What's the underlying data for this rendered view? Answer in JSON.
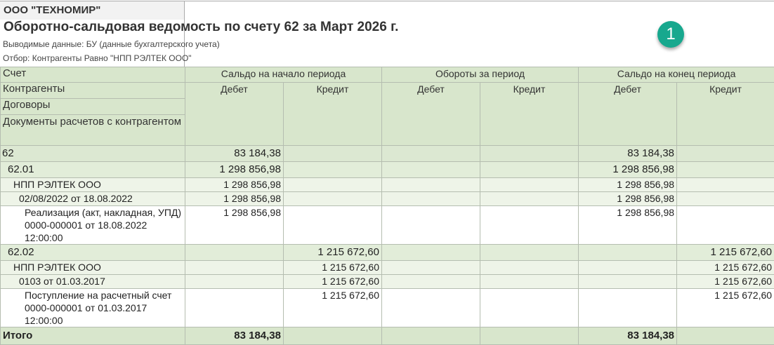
{
  "report": {
    "organization": "ООО \"ТЕХНОМИР\"",
    "title": "Оборотно-сальдовая ведомость по счету 62 за Март 2026 г.",
    "output_data": "Выводимые данные: БУ (данные бухгалтерского учета)",
    "filter": "Отбор: Контрагенты Равно \"НПП РЭЛТЕК ООО\""
  },
  "badge": "1",
  "header": {
    "row_labels": [
      "Счет",
      "Контрагенты",
      "Договоры",
      "Документы расчетов с контрагентом"
    ],
    "groups": [
      "Сальдо на начало периода",
      "Обороты за период",
      "Сальдо на конец периода"
    ],
    "debit": "Дебет",
    "credit": "Кредит"
  },
  "rows": [
    {
      "label": "62",
      "values": [
        "83 184,38",
        "",
        "",
        "",
        "83 184,38",
        ""
      ]
    },
    {
      "label": "62.01",
      "values": [
        "1 298 856,98",
        "",
        "",
        "",
        "1 298 856,98",
        ""
      ]
    },
    {
      "label": "НПП РЭЛТЕК ООО",
      "values": [
        "1 298 856,98",
        "",
        "",
        "",
        "1 298 856,98",
        ""
      ]
    },
    {
      "label": "02/08/2022 от 18.08.2022",
      "values": [
        "1 298 856,98",
        "",
        "",
        "",
        "1 298 856,98",
        ""
      ]
    },
    {
      "label": "Реализация (акт, накладная, УПД) 0000-000001 от 18.08.2022 12:00:00",
      "values": [
        "1 298 856,98",
        "",
        "",
        "",
        "1 298 856,98",
        ""
      ]
    },
    {
      "label": "62.02",
      "values": [
        "",
        "1 215 672,60",
        "",
        "",
        "",
        "1 215 672,60"
      ]
    },
    {
      "label": "НПП РЭЛТЕК ООО",
      "values": [
        "",
        "1 215 672,60",
        "",
        "",
        "",
        "1 215 672,60"
      ]
    },
    {
      "label": "0103 от 01.03.2017",
      "values": [
        "",
        "1 215 672,60",
        "",
        "",
        "",
        "1 215 672,60"
      ]
    },
    {
      "label": "Поступление на расчетный счет 0000-000001 от 01.03.2017 12:00:00",
      "values": [
        "",
        "1 215 672,60",
        "",
        "",
        "",
        "1 215 672,60"
      ]
    }
  ],
  "total": {
    "label": "Итого",
    "values": [
      "83 184,38",
      "",
      "",
      "",
      "83 184,38",
      ""
    ]
  }
}
